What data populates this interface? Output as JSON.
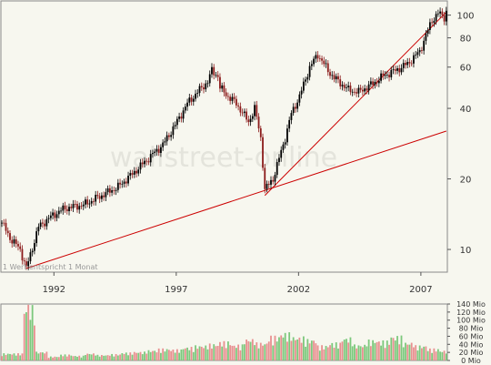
{
  "chart_data": [
    {
      "type": "candlestick",
      "x_axis": {
        "type": "date",
        "range": [
          "1989-11-01",
          "2008-01-31"
        ],
        "tick_labels": [
          "1992",
          "1997",
          "2002",
          "2007"
        ]
      },
      "y_axis": {
        "scale": "log",
        "range": [
          8,
          115
        ],
        "position": "right",
        "tick_labels": [
          "100",
          "80",
          "60",
          "40",
          "20",
          "10"
        ],
        "tick_values": [
          100,
          80,
          60,
          40,
          20,
          10
        ]
      },
      "grid": false,
      "colors": {
        "candle_body": "#000000",
        "down_candle": "#8b1a1a",
        "trendline": "#cc0000",
        "background": "#f7f7ef"
      },
      "series": [
        {
          "interval": "1 month",
          "x": [
            "1989-11",
            "1990-03",
            "1990-08",
            "1990-11",
            "1991-05",
            "1991-12",
            "1992-06",
            "1993-03",
            "1993-12",
            "1994-08",
            "1995-03",
            "1995-12",
            "1996-06",
            "1996-12",
            "1997-06",
            "1997-12",
            "1998-04",
            "1998-06",
            "1998-09",
            "1998-10",
            "1999-02",
            "1999-06",
            "1999-12",
            "2000-03",
            "2000-06",
            "2000-08",
            "2000-12",
            "2001-06",
            "2001-09",
            "2002-01",
            "2002-06",
            "2002-10",
            "2003-03",
            "2003-06",
            "2004-01",
            "2004-06",
            "2005-01",
            "2005-06",
            "2005-12",
            "2006-06",
            "2006-12",
            "2007-03",
            "2007-06",
            "2007-09",
            "2007-12",
            "2008-01"
          ],
          "y": [
            13.0,
            11.2,
            10.0,
            8.3,
            12.5,
            14.0,
            15.0,
            15.5,
            17.0,
            18.5,
            21.0,
            25.0,
            28.0,
            34.0,
            42.0,
            48.0,
            52.0,
            58.0,
            55.0,
            49.0,
            45.0,
            42.0,
            35.0,
            40.0,
            30.0,
            18.0,
            20.0,
            30.0,
            38.0,
            45.0,
            60.0,
            68.0,
            58.0,
            54.0,
            48.0,
            47.0,
            51.0,
            55.0,
            58.0,
            62.0,
            70.0,
            82.0,
            95.0,
            102.0,
            98.0,
            104.0
          ]
        }
      ],
      "trendlines": [
        {
          "from": [
            "1990-11",
            8.3
          ],
          "to": [
            "2008-01",
            32.0
          ]
        },
        {
          "from": [
            "2000-08",
            17.0
          ],
          "to": [
            "2008-01",
            103.0
          ]
        }
      ],
      "annotations": [
        "1 Wert entspricht 1 Monat"
      ],
      "watermark": "wallstreet-online"
    },
    {
      "type": "bar",
      "x_axis": {
        "type": "date",
        "range": [
          "1989-11-01",
          "2008-01-31"
        ]
      },
      "y_axis": {
        "position": "right",
        "range": [
          0,
          140
        ],
        "tick_labels": [
          "140 Mio",
          "120 Mio",
          "100 Mio",
          "80 Mio",
          "60 Mio",
          "40 Mio",
          "20 Mio",
          "0 Mio"
        ],
        "tick_values": [
          140,
          120,
          100,
          80,
          60,
          40,
          20,
          0
        ]
      },
      "colors": {
        "up": "#7cc87c",
        "down": "#e89090"
      },
      "series": [
        {
          "x": [
            "1990-06",
            "1990-12",
            "1991-06",
            "1991-12",
            "1992-06",
            "1992-12",
            "1993-06",
            "1993-12",
            "1994-06",
            "1994-12",
            "1995-06",
            "1995-12",
            "1996-06",
            "1996-12",
            "1997-06",
            "1997-12",
            "1998-06",
            "1998-12",
            "1999-06",
            "1999-12",
            "2000-06",
            "2000-12",
            "2001-06",
            "2001-12",
            "2002-06",
            "2002-12",
            "2003-06",
            "2003-12",
            "2004-06",
            "2004-12",
            "2005-06",
            "2005-12",
            "2006-06",
            "2006-12",
            "2007-06",
            "2007-12"
          ],
          "y": [
            18,
            138,
            22,
            10,
            15,
            12,
            18,
            14,
            16,
            20,
            22,
            26,
            30,
            28,
            34,
            38,
            42,
            48,
            40,
            55,
            45,
            62,
            70,
            60,
            54,
            38,
            45,
            58,
            40,
            52,
            50,
            62,
            46,
            38,
            30,
            25
          ],
          "direction": [
            "up",
            "up",
            "up",
            "down",
            "up",
            "up",
            "down",
            "up",
            "down",
            "up",
            "up",
            "up",
            "up",
            "down",
            "up",
            "up",
            "down",
            "up",
            "down",
            "up",
            "down",
            "up",
            "up",
            "down",
            "up",
            "down",
            "down",
            "up",
            "down",
            "up",
            "down",
            "up",
            "down",
            "up",
            "down",
            "up"
          ]
        }
      ]
    }
  ]
}
